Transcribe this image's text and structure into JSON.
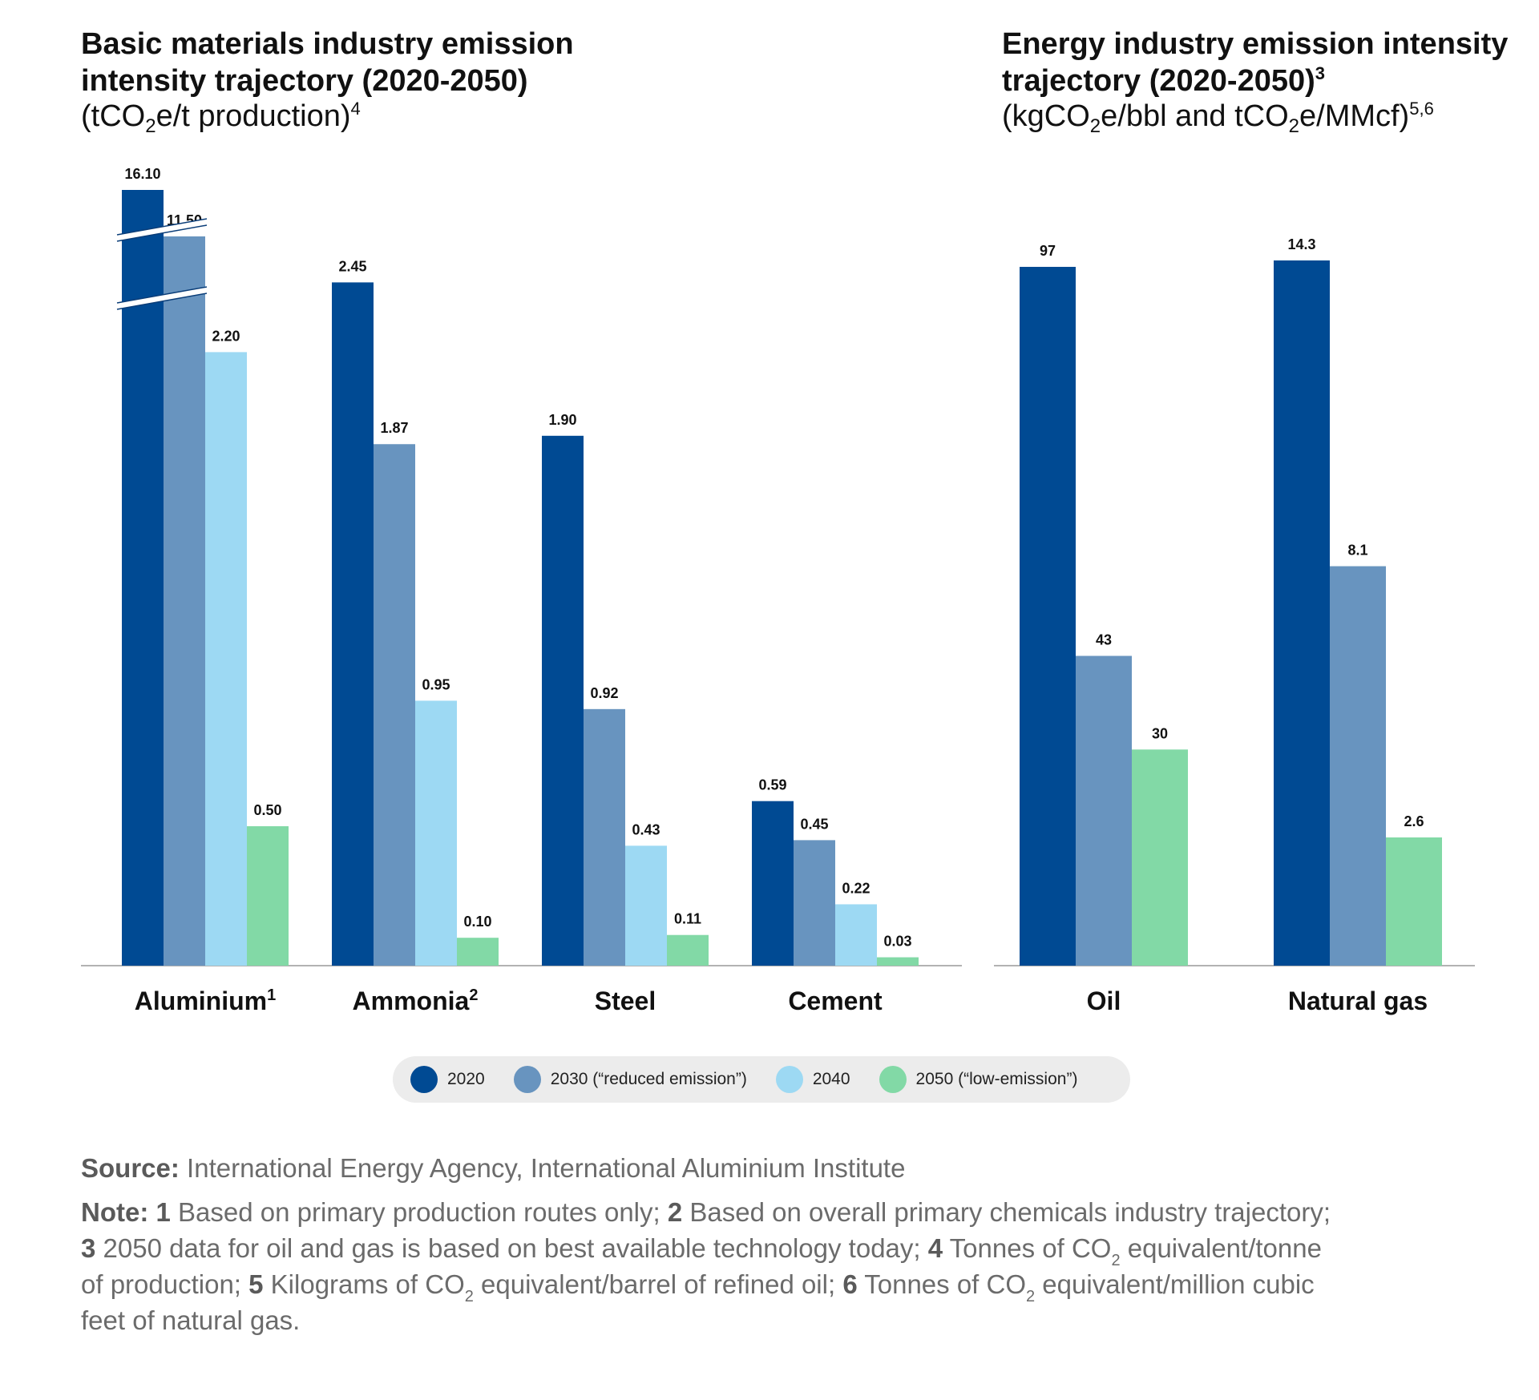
{
  "colors": {
    "2020": "#004a93",
    "2030": "#6894bf",
    "2040": "#9dd9f3",
    "2050": "#82d9a6",
    "axis": "#999999"
  },
  "left_title": "Basic materials industry emission intensity trajectory (2020-2050)",
  "left_subtitle": {
    "pre": "(tCO",
    "sub": "2",
    "post": "e/t production)",
    "sup": "4"
  },
  "right_title": {
    "text": "Energy industry emission intensity trajectory (2020-2050)",
    "sup": "3"
  },
  "right_subtitle": {
    "pre": "(kgCO",
    "sub1": "2",
    "mid": "e/bbl and tCO",
    "sub2": "2",
    "post": "e/MMcf)",
    "sup": "5,6"
  },
  "chart_data": [
    {
      "type": "bar",
      "title": "Basic materials industry emission intensity trajectory (2020-2050)",
      "ylabel": "(tCO2e/t production)",
      "axis_break": true,
      "categories": [
        {
          "label": "Aluminium",
          "sup": "1"
        },
        {
          "label": "Ammonia",
          "sup": "2"
        },
        {
          "label": "Steel",
          "sup": ""
        },
        {
          "label": "Cement",
          "sup": ""
        }
      ],
      "series": [
        {
          "name": "2020",
          "values": [
            16.1,
            2.45,
            1.9,
            0.59
          ],
          "labels": [
            "16.10",
            "2.45",
            "1.90",
            "0.59"
          ]
        },
        {
          "name": "2030 (“reduced emission”)",
          "values": [
            11.5,
            1.87,
            0.92,
            0.45
          ],
          "labels": [
            "11.50",
            "1.87",
            "0.92",
            "0.45"
          ]
        },
        {
          "name": "2040",
          "values": [
            2.2,
            0.95,
            0.43,
            0.22
          ],
          "labels": [
            "2.20",
            "0.95",
            "0.43",
            "0.22"
          ]
        },
        {
          "name": "2050 (“low-emission”)",
          "values": [
            0.5,
            0.1,
            0.11,
            0.03
          ],
          "labels": [
            "0.50",
            "0.10",
            "0.11",
            "0.03"
          ]
        }
      ]
    },
    {
      "type": "bar",
      "title": "Energy industry emission intensity trajectory (2020-2050)",
      "ylabel": "(kgCO2e/bbl and tCO2e/MMcf)",
      "categories": [
        {
          "label": "Oil",
          "sup": ""
        },
        {
          "label": "Natural gas",
          "sup": ""
        }
      ],
      "series": [
        {
          "name": "2020",
          "values": [
            97,
            14.3
          ],
          "labels": [
            "97",
            "14.3"
          ]
        },
        {
          "name": "2030 (“reduced emission”)",
          "values": [
            43,
            8.1
          ],
          "labels": [
            "43",
            "8.1"
          ]
        },
        {
          "name": "2050 (“low-emission”)",
          "values": [
            30,
            2.6
          ],
          "labels": [
            "30",
            "2.6"
          ]
        }
      ]
    }
  ],
  "legend": [
    {
      "key": "2020",
      "label": "2020"
    },
    {
      "key": "2030",
      "label": "2030 (“reduced emission”)"
    },
    {
      "key": "2040",
      "label": "2040"
    },
    {
      "key": "2050",
      "label": "2050 (“low-emission”)"
    }
  ],
  "footer": {
    "source_label": "Source:",
    "source_text": " International Energy Agency, International Aluminium Institute",
    "note_label": "Note:",
    "n1": "1",
    "t1": " Based on primary production routes only; ",
    "n2": "2",
    "t2": " Based on overall primary chemicals industry trajectory; ",
    "n3": "3",
    "t3": " 2050 data for oil and gas is based on best available technology today; ",
    "n4": "4",
    "t4a": " Tonnes of CO",
    "t4sub": "2",
    "t4b": " equivalent/tonne of production; ",
    "n5": "5",
    "t5a": " Kilograms of CO",
    "t5sub": "2",
    "t5b": " equivalent/barrel of refined oil; ",
    "n6": "6",
    "t6a": " Tonnes of CO",
    "t6sub": "2",
    "t6b": " equivalent/million cubic feet of natural gas."
  }
}
